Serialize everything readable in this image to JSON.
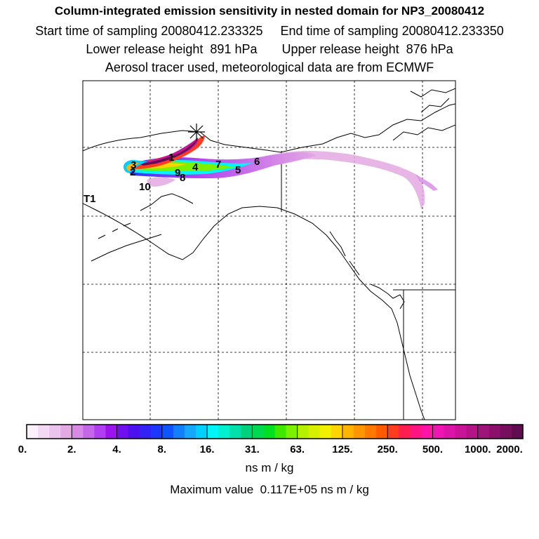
{
  "header": {
    "title": "Column-integrated emission sensitivity in nested domain for NP3_20080412",
    "line2": "Start time of sampling 20080412.233325     End time of sampling 20080412.233350",
    "line3": "Lower release height  891 hPa       Upper release height  876 hPa",
    "line4": "Aerosol tracer used, meteorological data are from ECMWF"
  },
  "map": {
    "trajectory_labels": [
      "1",
      "2",
      "3",
      "4",
      "5",
      "6",
      "7",
      "8",
      "9",
      "10"
    ],
    "station_label": "T1",
    "release_marker": "star-marker"
  },
  "colorbar": {
    "tick_labels": [
      "0.",
      "2.",
      "4.",
      "8.",
      "16.",
      "31.",
      "63.",
      "125.",
      "250.",
      "500.",
      "1000.",
      "2000."
    ],
    "colors": [
      "#fbf0fb",
      "#f3d9f3",
      "#ecc3ec",
      "#e3a9e3",
      "#d889e6",
      "#c466e8",
      "#b13ef0",
      "#9b13ee",
      "#7010f0",
      "#4d10f0",
      "#3322f5",
      "#1c37ff",
      "#0f55ff",
      "#1080ff",
      "#14a8ff",
      "#00d0ff",
      "#00f6f6",
      "#00f0d0",
      "#00e0a8",
      "#00d27c",
      "#00d850",
      "#00e020",
      "#40e800",
      "#7bf000",
      "#b4f000",
      "#d8f000",
      "#f0f000",
      "#ffd400",
      "#ffb400",
      "#ff9600",
      "#ff7800",
      "#ff5a00",
      "#ff3c1e",
      "#ff1e50",
      "#ff1482",
      "#ff14a8",
      "#f014b4",
      "#dc14a8",
      "#c81496",
      "#b41486",
      "#9e147a",
      "#8a106c",
      "#760e5e",
      "#600c50"
    ],
    "unit": "ns m / kg",
    "max_label": "Maximum value  0.117E+05 ns m / kg"
  }
}
